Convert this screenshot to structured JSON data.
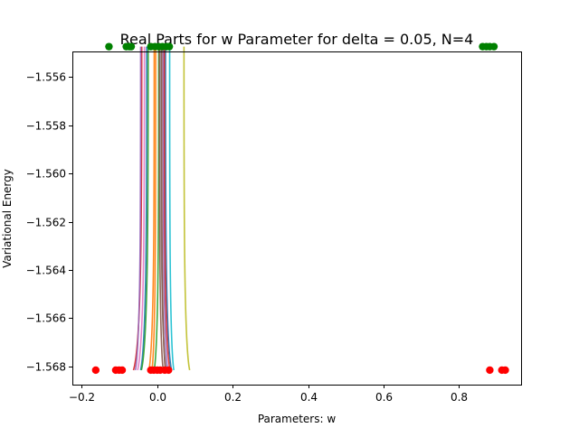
{
  "chart_data": {
    "type": "scatter",
    "title": "Real Parts for w Parameter for delta = 0.05, N=4",
    "xlabel": "Parameters: w",
    "ylabel": "Variational Energy",
    "xlim": [
      -0.225,
      0.965
    ],
    "ylim": [
      -1.56875,
      -1.55495
    ],
    "x_ticks": [
      -0.2,
      0.0,
      0.2,
      0.4,
      0.6,
      0.8
    ],
    "x_tick_labels": [
      "−0.2",
      "0.0",
      "0.2",
      "0.4",
      "0.6",
      "0.8"
    ],
    "y_ticks": [
      -1.556,
      -1.558,
      -1.56,
      -1.562,
      -1.564,
      -1.566,
      -1.568
    ],
    "y_tick_labels": [
      "−1.556",
      "−1.558",
      "−1.560",
      "−1.562",
      "−1.564",
      "−1.566",
      "−1.568"
    ],
    "grid": false,
    "legend": "none",
    "start_points": {
      "name": "",
      "color": "#008000",
      "y": -1.55475,
      "x": [
        -0.128,
        -0.082,
        -0.074,
        -0.069,
        -0.017,
        -0.006,
        0.004,
        0.014,
        0.025,
        0.032,
        0.863,
        0.873,
        0.882,
        0.893
      ]
    },
    "end_points": {
      "name": "",
      "color": "#ff0000",
      "y": -1.56815,
      "x": [
        -0.163,
        -0.11,
        -0.101,
        -0.093,
        -0.017,
        -0.009,
        0.0,
        0.008,
        0.02,
        0.03,
        0.882,
        0.914,
        0.923
      ]
    },
    "trajectories": [
      {
        "color": "#1f77b4",
        "x_start": 0.022,
        "x_end": 0.038
      },
      {
        "color": "#ff7f0e",
        "x_start": -0.008,
        "x_end": -0.022
      },
      {
        "color": "#2ca02c",
        "x_start": 0.004,
        "x_end": -0.008
      },
      {
        "color": "#d62728",
        "x_start": -0.041,
        "x_end": -0.063
      },
      {
        "color": "#9467bd",
        "x_start": 0.016,
        "x_end": 0.028
      },
      {
        "color": "#8c564b",
        "x_start": 0.006,
        "x_end": 0.016
      },
      {
        "color": "#e377c2",
        "x_start": -0.034,
        "x_end": -0.052
      },
      {
        "color": "#7f7f7f",
        "x_start": 0.01,
        "x_end": 0.024
      },
      {
        "color": "#bcbd22",
        "x_start": 0.071,
        "x_end": 0.086
      },
      {
        "color": "#17becf",
        "x_start": 0.033,
        "x_end": 0.044
      },
      {
        "color": "#1f77b4",
        "x_start": -0.028,
        "x_end": -0.044
      },
      {
        "color": "#ff7f0e",
        "x_start": -0.004,
        "x_end": -0.014
      },
      {
        "color": "#2ca02c",
        "x_start": -0.024,
        "x_end": -0.042
      },
      {
        "color": "#d62728",
        "x_start": 0.019,
        "x_end": 0.034
      },
      {
        "color": "#9467bd",
        "x_start": -0.044,
        "x_end": -0.058
      },
      {
        "color": "#8c564b",
        "x_start": 0.012,
        "x_end": 0.022
      }
    ]
  }
}
